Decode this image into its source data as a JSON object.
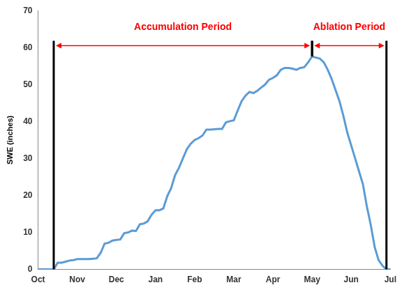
{
  "chart_data": {
    "type": "line",
    "y_label": "SWE (inches)",
    "categories": [
      "Oct",
      null,
      null,
      null,
      null,
      null,
      null,
      null,
      null,
      null,
      "Nov",
      null,
      null,
      null,
      null,
      null,
      null,
      null,
      null,
      null,
      "Dec",
      null,
      null,
      null,
      null,
      null,
      null,
      null,
      null,
      null,
      "Jan",
      null,
      null,
      null,
      null,
      null,
      null,
      null,
      null,
      null,
      "Feb",
      null,
      null,
      null,
      null,
      null,
      null,
      null,
      null,
      null,
      "Mar",
      null,
      null,
      null,
      null,
      null,
      null,
      null,
      null,
      null,
      "Apr",
      null,
      null,
      null,
      null,
      null,
      null,
      null,
      null,
      null,
      "May",
      null,
      null,
      null,
      null,
      null,
      null,
      null,
      null,
      null,
      "Jun",
      null,
      null,
      null,
      null,
      null,
      null,
      null,
      null,
      null,
      "Jul"
    ],
    "values": [
      0,
      0,
      0,
      0,
      0,
      1.8,
      1.8,
      2.1,
      2.4,
      2.5,
      2.8,
      2.8,
      2.8,
      2.8,
      2.9,
      3,
      4.5,
      7,
      7.2,
      7.8,
      8,
      8.1,
      9.8,
      10,
      10.5,
      10.4,
      12.2,
      12.4,
      13,
      14.8,
      16,
      16,
      16.5,
      19.8,
      22,
      25.5,
      27.5,
      30,
      32.5,
      34,
      35,
      35.5,
      36.2,
      37.8,
      37.8,
      37.9,
      38,
      38,
      39.8,
      40.1,
      40.3,
      43,
      45.5,
      47,
      48,
      47.7,
      48.3,
      49.2,
      50,
      51.3,
      51.8,
      52.5,
      54,
      54.5,
      54.5,
      54.3,
      54,
      54.5,
      54.7,
      56,
      57.6,
      57.3,
      57,
      56,
      54,
      51.5,
      48.5,
      45.5,
      41.5,
      37,
      33.5,
      30,
      26.5,
      23,
      17,
      12,
      6,
      2.5,
      1,
      0,
      0
    ],
    "color": "#5b9bd5",
    "ylim": [
      0,
      70
    ],
    "yticks": [
      0,
      10,
      20,
      30,
      40,
      50,
      60,
      70
    ],
    "grid": false,
    "annotations": [
      {
        "text": "Accumulation Period",
        "x_start": 4,
        "x_end": 70,
        "y": 60.5
      },
      {
        "text": "Ablation Period",
        "x_start": 70,
        "x_end": 89,
        "y": 60.5
      }
    ]
  }
}
